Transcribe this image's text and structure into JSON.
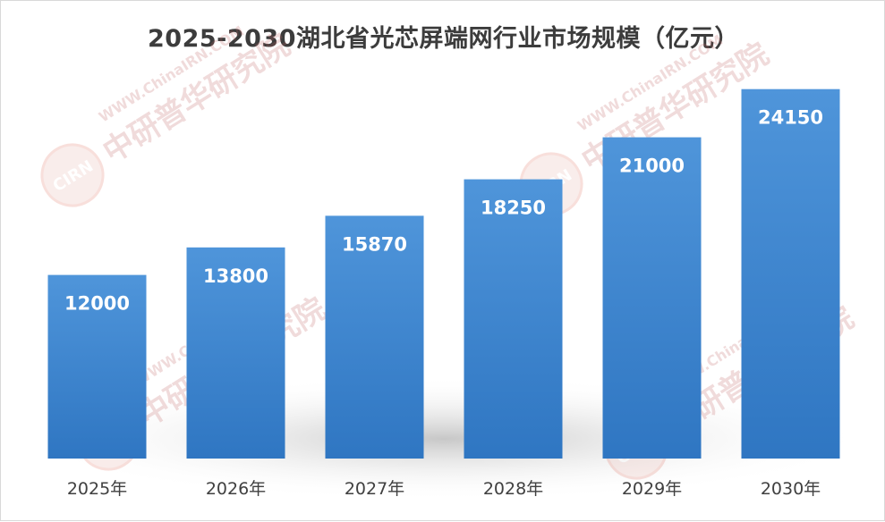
{
  "chart_data": {
    "type": "bar",
    "title": "2025-2030湖北省光芯屏端网行业市场规模（亿元）",
    "categories": [
      "2025年",
      "2026年",
      "2027年",
      "2028年",
      "2029年",
      "2030年"
    ],
    "values": [
      12000,
      13800,
      15870,
      18250,
      21000,
      24150
    ],
    "data_labels": [
      "12000",
      "13800",
      "15870",
      "18250",
      "21000",
      "24150"
    ],
    "xlabel": "",
    "ylabel": "",
    "ylim": [
      0,
      26000
    ],
    "grid": false,
    "legend": "none",
    "bar_color": "#4a90d6",
    "bar_color_dark": "#3278c2"
  },
  "watermark": {
    "logo_text": "CIRN",
    "brand_text": "中研普华研究院",
    "url_text": "WWW.ChinaIRN.COM"
  }
}
